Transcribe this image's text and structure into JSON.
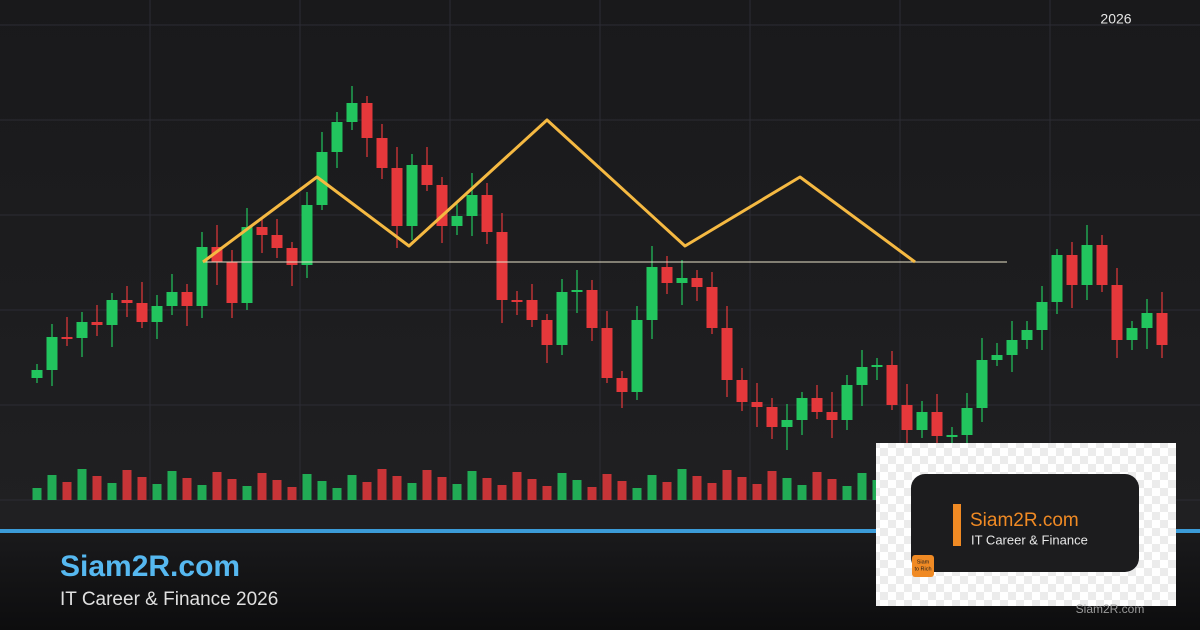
{
  "header": {
    "year": "2026"
  },
  "footer": {
    "title": "Siam2R.com",
    "subtitle": "IT Career & Finance 2026"
  },
  "logo": {
    "title": "Siam2R.com",
    "subtitle": "IT Career & Finance",
    "badge": [
      "Siam",
      "to Rich"
    ]
  },
  "watermark": "Siam2R.com"
}
